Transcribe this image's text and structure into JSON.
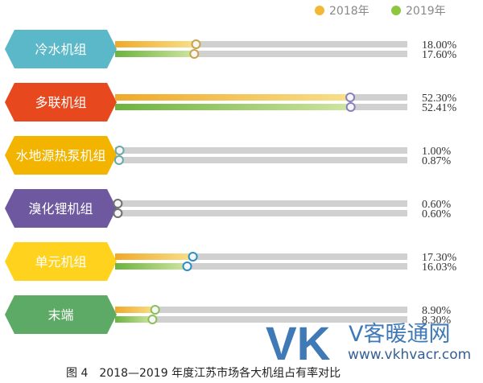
{
  "chart_data": {
    "type": "bar",
    "orientation": "horizontal",
    "title": "图 4　2018—2019 年度江苏市场各大机组占有率对比",
    "legend": {
      "position": "top-right",
      "entries": [
        "2018年",
        "2019年"
      ]
    },
    "categories": [
      "冷水机组",
      "多联机组",
      "水地源热泵机组",
      "溴化锂机组",
      "单元机组",
      "末端"
    ],
    "category_colors": [
      "#5ab8c8",
      "#e8481e",
      "#f3b400",
      "#6e58a0",
      "#ffd21e",
      "#5caa65"
    ],
    "series": [
      {
        "name": "2018年",
        "color": "#f2b836",
        "values": [
          18.0,
          52.3,
          1.0,
          0.6,
          17.3,
          8.9
        ],
        "labels": [
          "18.00%",
          "52.30%",
          "1.00%",
          "0.60%",
          "17.30%",
          "8.90%"
        ]
      },
      {
        "name": "2019年",
        "color": "#8dc63f",
        "values": [
          17.6,
          52.41,
          0.87,
          0.6,
          16.03,
          8.3
        ],
        "labels": [
          "17.60%",
          "52.41%",
          "0.87%",
          "0.60%",
          "16.03%",
          "8.30%"
        ]
      }
    ],
    "xlim": [
      0,
      65
    ],
    "knob_colors": [
      "#c9a24a",
      "#8a80c0",
      "#6aa8a8",
      "#707070",
      "#2b8cc6",
      "#8cbf5a"
    ]
  },
  "watermark": {
    "logo": "VK",
    "name": "V客暖通网",
    "url": "www.vkhvacr.com"
  }
}
